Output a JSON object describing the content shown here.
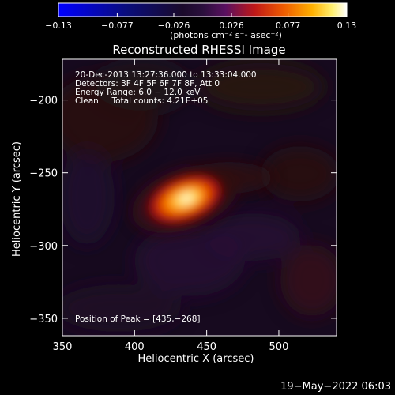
{
  "chart_data": {
    "type": "heatmap",
    "title": "Reconstructed RHESSI Image",
    "xlabel": "Heliocentric X (arcsec)",
    "ylabel": "Heliocentric Y (arcsec)",
    "xlim": [
      350,
      540
    ],
    "ylim": [
      -362,
      -172
    ],
    "x_ticks": [
      350,
      400,
      450,
      500
    ],
    "x_tick_labels": [
      "350",
      "400",
      "450",
      "500"
    ],
    "y_ticks": [
      -200,
      -250,
      -300,
      -350
    ],
    "y_tick_labels": [
      "−200",
      "−250",
      "−300",
      "−350"
    ],
    "colorbar": {
      "range": [
        -0.13,
        0.13
      ],
      "ticks": [
        -0.13,
        -0.077,
        -0.026,
        0.026,
        0.077,
        0.13
      ],
      "tick_labels": [
        "−0.13",
        "−0.077",
        "−0.026",
        "0.026",
        "0.077",
        "0.13"
      ],
      "units_label": "(photons cm⁻² s⁻¹ asec⁻²)",
      "colormap": "blue-black-purple-red-orange-yellow-white"
    },
    "source": {
      "x_center": 435,
      "y_center": -268,
      "peak_value": 0.13,
      "x_sigma_arcsec": 14,
      "y_sigma_arcsec": 8,
      "orientation_deg": 20
    },
    "annotations": [
      "20-Dec-2013 13:27:36.000 to 13:33:04.000",
      "Detectors: 3F 4F 5F 6F 7F 8F, Att 0",
      "Energy Range: 6.0 − 12.0 keV",
      "Clean     Total counts: 4.21E+05"
    ],
    "peak_label": "Position of Peak = [435,−268]"
  },
  "footer_date": "19−May−2022 06:03"
}
